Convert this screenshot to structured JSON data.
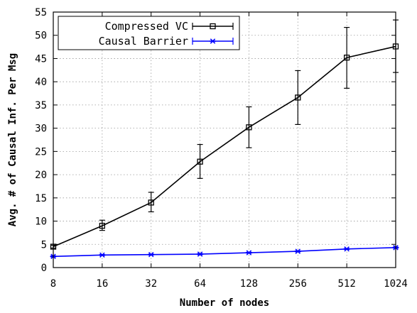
{
  "chart_data": {
    "type": "line",
    "xlabel": "Number of nodes",
    "ylabel": "Avg. # of Causal Inf. Per Msg",
    "categories": [
      "8",
      "16",
      "32",
      "64",
      "128",
      "256",
      "512",
      "1024"
    ],
    "ylim": [
      0,
      55
    ],
    "yticks": [
      0,
      5,
      10,
      15,
      20,
      25,
      30,
      35,
      40,
      45,
      50,
      55
    ],
    "grid": true,
    "legend_position": "top-left",
    "series": [
      {
        "name": "Compressed VC",
        "color": "#000000",
        "marker": "square",
        "values": [
          4.5,
          9.0,
          14.0,
          22.8,
          30.2,
          36.6,
          45.2,
          47.6
        ],
        "error_low": [
          4.2,
          8.0,
          12.0,
          19.2,
          25.8,
          30.8,
          38.6,
          42.0
        ],
        "error_high": [
          4.8,
          10.2,
          16.2,
          26.5,
          34.6,
          42.4,
          51.7,
          53.3
        ]
      },
      {
        "name": "Causal Barrier",
        "color": "#0000ff",
        "marker": "asterisk",
        "values": [
          2.4,
          2.7,
          2.8,
          2.9,
          3.2,
          3.5,
          4.0,
          4.3
        ],
        "error_low": [
          2.3,
          2.6,
          2.7,
          2.8,
          3.1,
          3.4,
          3.9,
          4.2
        ],
        "error_high": [
          2.5,
          2.8,
          2.9,
          3.0,
          3.3,
          3.6,
          4.1,
          4.4
        ]
      }
    ]
  }
}
